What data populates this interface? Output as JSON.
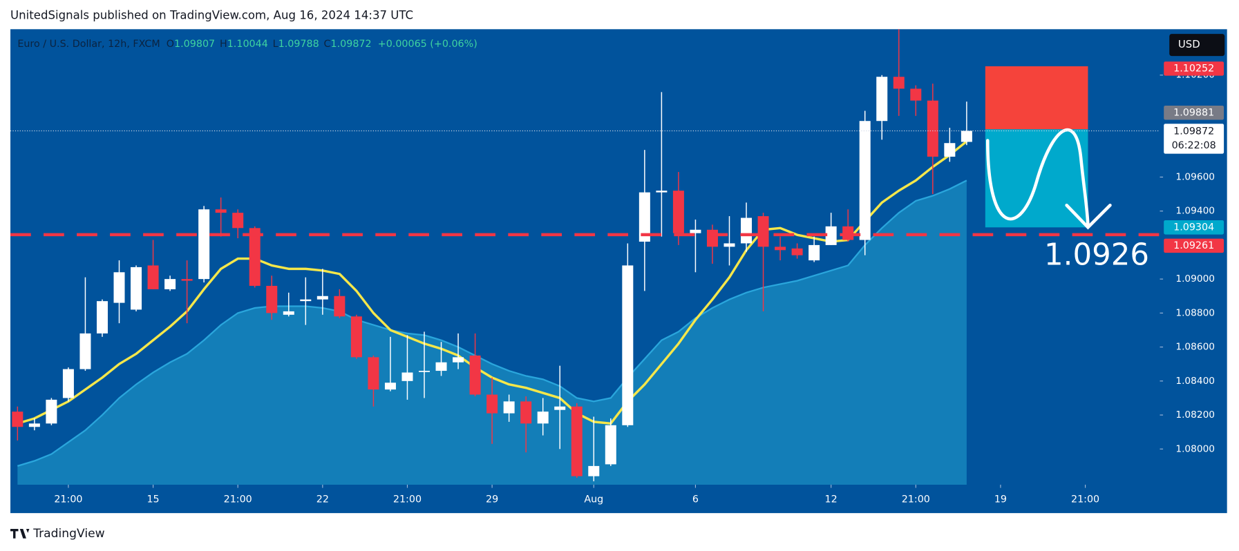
{
  "header": {
    "byline": "UnitedSignals published on TradingView.com, Aug 16, 2024 14:37 UTC"
  },
  "footer": {
    "brand": "TradingView"
  },
  "chart_data": {
    "type": "candlestick",
    "symbol": "Euro / U.S. Dollar, 12h, FXCM",
    "ohlc_letters": [
      "O",
      "H",
      "L",
      "C"
    ],
    "ohlc_values": [
      1.09807,
      1.10044,
      1.09788,
      1.09872
    ],
    "change": "+0.00065 (+0.06%)",
    "currency": "USD",
    "open": [
      1.0822,
      1.0813,
      1.0815,
      1.083,
      1.0847,
      1.0868,
      1.0886,
      1.0882,
      1.0908,
      1.0894,
      1.09,
      1.09,
      1.0941,
      1.0939,
      1.093,
      1.0896,
      1.0879,
      1.0887,
      1.0888,
      1.089,
      1.0878,
      1.0854,
      1.0835,
      1.084,
      1.0846,
      1.0846,
      1.0851,
      1.0855,
      1.0832,
      1.0821,
      1.0828,
      1.0815,
      1.0823,
      1.0825,
      1.0784,
      1.0791,
      1.0814,
      1.0922,
      1.0951,
      1.0952,
      1.0927,
      1.0929,
      1.0919,
      1.0921,
      1.0937,
      1.0919,
      1.0918,
      1.0911,
      1.092,
      1.0931,
      1.0923,
      1.0993,
      1.1019,
      1.1012,
      1.1005,
      1.0972,
      1.09807
    ],
    "high": [
      1.0825,
      1.0818,
      1.083,
      1.0848,
      1.0901,
      1.0888,
      1.0911,
      1.0908,
      1.0923,
      1.0902,
      1.0911,
      1.0943,
      1.0948,
      1.0941,
      1.0931,
      1.0902,
      1.0892,
      1.0901,
      1.0906,
      1.0894,
      1.0879,
      1.0855,
      1.0866,
      1.0867,
      1.0869,
      1.0863,
      1.0868,
      1.0868,
      1.0842,
      1.0832,
      1.0831,
      1.083,
      1.0849,
      1.0827,
      1.0819,
      1.0818,
      1.0921,
      1.0976,
      1.101,
      1.0963,
      1.0935,
      1.0932,
      1.0937,
      1.0945,
      1.0939,
      1.0925,
      1.0921,
      1.0925,
      1.0939,
      1.0941,
      1.0999,
      1.102,
      1.1047,
      1.1014,
      1.1015,
      1.0989,
      1.10044
    ],
    "low": [
      1.0805,
      1.0811,
      1.0814,
      1.0828,
      1.0846,
      1.0866,
      1.0874,
      1.0881,
      1.0894,
      1.0893,
      1.0874,
      1.0898,
      1.0925,
      1.0924,
      1.0895,
      1.0876,
      1.0878,
      1.0873,
      1.0879,
      1.0877,
      1.0853,
      1.0825,
      1.0834,
      1.0829,
      1.083,
      1.0843,
      1.0847,
      1.0831,
      1.0803,
      1.0816,
      1.0798,
      1.0808,
      1.08,
      1.0783,
      1.0781,
      1.079,
      1.0813,
      1.0893,
      1.0925,
      1.092,
      1.0904,
      1.0909,
      1.0908,
      1.0916,
      1.0881,
      1.0911,
      1.0912,
      1.091,
      1.092,
      1.0922,
      1.0914,
      1.0982,
      1.0996,
      1.0996,
      1.095,
      1.0969,
      1.09788
    ],
    "close": [
      1.0813,
      1.0815,
      1.0829,
      1.0847,
      1.0868,
      1.0887,
      1.0904,
      1.0907,
      1.0894,
      1.09,
      1.0899,
      1.0941,
      1.0939,
      1.093,
      1.0896,
      1.088,
      1.0881,
      1.0888,
      1.089,
      1.0878,
      1.0854,
      1.0835,
      1.0839,
      1.0845,
      1.0846,
      1.0851,
      1.0854,
      1.0832,
      1.0821,
      1.0828,
      1.0815,
      1.0822,
      1.0825,
      1.0784,
      1.079,
      1.0814,
      1.0908,
      1.0951,
      1.0952,
      1.0927,
      1.0929,
      1.0919,
      1.0921,
      1.0936,
      1.0919,
      1.0917,
      1.0914,
      1.092,
      1.0931,
      1.0923,
      1.0993,
      1.1019,
      1.1012,
      1.1005,
      1.0972,
      1.098,
      1.09872
    ],
    "up_color": "#ffffff",
    "down_color": "#f23645",
    "series": [
      {
        "color": "#f5e74a",
        "values": [
          1.0815,
          1.0818,
          1.0823,
          1.0828,
          1.0835,
          1.0842,
          1.085,
          1.0856,
          1.0864,
          1.0872,
          1.0881,
          1.0894,
          1.0906,
          1.0912,
          1.0912,
          1.0908,
          1.0906,
          1.0906,
          1.0905,
          1.0903,
          1.0893,
          1.088,
          1.087,
          1.0866,
          1.0862,
          1.0859,
          1.0855,
          1.0848,
          1.0842,
          1.0838,
          1.0836,
          1.0833,
          1.083,
          1.0821,
          1.0816,
          1.0815,
          1.0828,
          1.0838,
          1.085,
          1.0862,
          1.0876,
          1.0888,
          1.0901,
          1.0917,
          1.0929,
          1.093,
          1.0926,
          1.0924,
          1.0922,
          1.0923,
          1.0934,
          1.0945,
          1.0952,
          1.0958,
          1.0966,
          1.0973,
          1.0981
        ]
      },
      {
        "color": "#1a8cc2",
        "values": [
          1.079,
          1.0793,
          1.0797,
          1.0804,
          1.0811,
          1.082,
          1.083,
          1.0838,
          1.0845,
          1.0851,
          1.0856,
          1.0864,
          1.0873,
          1.088,
          1.0883,
          1.0884,
          1.0884,
          1.0884,
          1.0883,
          1.0881,
          1.0876,
          1.0873,
          1.087,
          1.0868,
          1.0867,
          1.0864,
          1.086,
          1.0855,
          1.085,
          1.0846,
          1.0843,
          1.0841,
          1.0837,
          1.083,
          1.0828,
          1.083,
          1.0842,
          1.0853,
          1.0864,
          1.0869,
          1.0877,
          1.0883,
          1.0888,
          1.0892,
          1.0895,
          1.0897,
          1.0899,
          1.0902,
          1.0905,
          1.0908,
          1.092,
          1.093,
          1.0939,
          1.0946,
          1.0949,
          1.0953,
          1.0958
        ]
      }
    ],
    "xlim": [
      -0.42,
      67.4
    ],
    "xticks": [
      {
        "value": 3,
        "label": "21:00"
      },
      {
        "value": 8,
        "label": "15"
      },
      {
        "value": 13,
        "label": "21:00"
      },
      {
        "value": 18,
        "label": "22"
      },
      {
        "value": 23,
        "label": "21:00"
      },
      {
        "value": 28,
        "label": "29"
      },
      {
        "value": 34,
        "label": "Aug"
      },
      {
        "value": 40,
        "label": "6"
      },
      {
        "value": 48,
        "label": "12"
      },
      {
        "value": 53,
        "label": "21:00"
      },
      {
        "value": 58,
        "label": "19"
      },
      {
        "value": 63,
        "label": "21:00"
      }
    ],
    "ylim": [
      1.0779,
      1.1047
    ],
    "yticks": [
      {
        "value": 1.08,
        "label": "1.08000"
      },
      {
        "value": 1.082,
        "label": "1.08200"
      },
      {
        "value": 1.084,
        "label": "1.08400"
      },
      {
        "value": 1.086,
        "label": "1.08600"
      },
      {
        "value": 1.088,
        "label": "1.08800"
      },
      {
        "value": 1.09,
        "label": "1.09000"
      },
      {
        "value": 1.094,
        "label": "1.09400"
      },
      {
        "value": 1.096,
        "label": "1.09600"
      },
      {
        "value": 1.102,
        "label": "1.10200"
      }
    ],
    "position": {
      "stop": 1.10252,
      "entry": 1.09881,
      "target": 1.09304
    },
    "level": 1.09261,
    "annotation": "1.0926",
    "last_price": 1.09872,
    "countdown": "06:22:08"
  }
}
